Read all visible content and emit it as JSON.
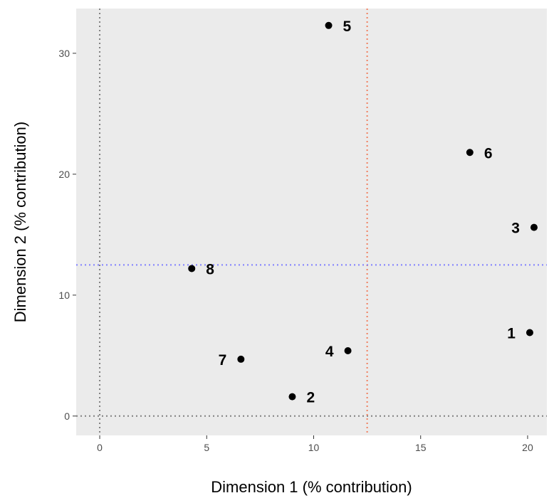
{
  "chart_data": {
    "type": "scatter",
    "xlabel": "Dimension 1 (% contribution)",
    "ylabel": "Dimension 2 (% contribution)",
    "xlim": [
      -1.1,
      20.9
    ],
    "ylim": [
      -1.6,
      33.7
    ],
    "x_ticks": [
      0,
      5,
      10,
      15,
      20
    ],
    "y_ticks": [
      0,
      10,
      20,
      30
    ],
    "grid": false,
    "background": "#ebebeb",
    "points": [
      {
        "label": "1",
        "x": 20.1,
        "y": 6.9,
        "label_side": "left"
      },
      {
        "label": "2",
        "x": 9.0,
        "y": 1.6,
        "label_side": "right"
      },
      {
        "label": "3",
        "x": 20.3,
        "y": 15.6,
        "label_side": "left"
      },
      {
        "label": "4",
        "x": 11.6,
        "y": 5.4,
        "label_side": "left"
      },
      {
        "label": "5",
        "x": 10.7,
        "y": 32.3,
        "label_side": "right"
      },
      {
        "label": "6",
        "x": 17.3,
        "y": 21.8,
        "label_side": "right"
      },
      {
        "label": "7",
        "x": 6.6,
        "y": 4.7,
        "label_side": "left"
      },
      {
        "label": "8",
        "x": 4.3,
        "y": 12.2,
        "label_side": "right"
      }
    ],
    "reference_lines": [
      {
        "name": "x-zero",
        "axis": "x",
        "value": 0,
        "color": "#808080"
      },
      {
        "name": "y-zero",
        "axis": "y",
        "value": 0,
        "color": "#808080"
      },
      {
        "name": "x-expected",
        "axis": "x",
        "value": 12.5,
        "color": "#f08060"
      },
      {
        "name": "y-expected",
        "axis": "y",
        "value": 12.5,
        "color": "#8080ff"
      }
    ]
  }
}
